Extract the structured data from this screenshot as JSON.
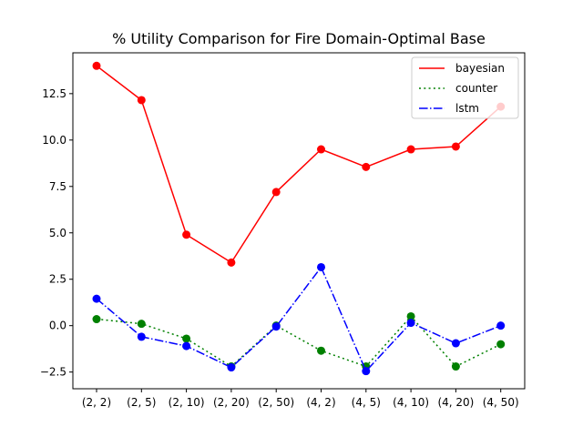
{
  "chart_data": {
    "type": "line",
    "title": "% Utility Comparison for Fire Domain-Optimal Base",
    "xlabel": "",
    "ylabel": "",
    "categories": [
      "(2, 2)",
      "(2, 5)",
      "(2, 10)",
      "(2, 20)",
      "(2, 50)",
      "(4, 2)",
      "(4, 5)",
      "(4, 10)",
      "(4, 20)",
      "(4, 50)"
    ],
    "ylim": [
      -3.4,
      14.7
    ],
    "yticks": [
      -2.5,
      0.0,
      2.5,
      5.0,
      7.5,
      10.0,
      12.5
    ],
    "ytick_labels": [
      "−2.5",
      "0.0",
      "2.5",
      "5.0",
      "7.5",
      "10.0",
      "12.5"
    ],
    "grid": false,
    "legend_position": "top-right",
    "series": [
      {
        "name": "bayesian",
        "color": "#ff0000",
        "linestyle": "solid",
        "values": [
          14.0,
          12.15,
          4.9,
          3.4,
          7.2,
          9.5,
          8.55,
          9.5,
          9.65,
          11.8
        ]
      },
      {
        "name": "counter",
        "color": "#008000",
        "linestyle": "dotted",
        "values": [
          0.35,
          0.1,
          -0.7,
          -2.2,
          0.0,
          -1.35,
          -2.2,
          0.5,
          -2.2,
          -1.0
        ]
      },
      {
        "name": "lstm",
        "color": "#0000ff",
        "linestyle": "dashdot",
        "values": [
          1.45,
          -0.6,
          -1.1,
          -2.25,
          -0.05,
          3.15,
          -2.45,
          0.15,
          -0.95,
          0.0
        ]
      }
    ]
  }
}
